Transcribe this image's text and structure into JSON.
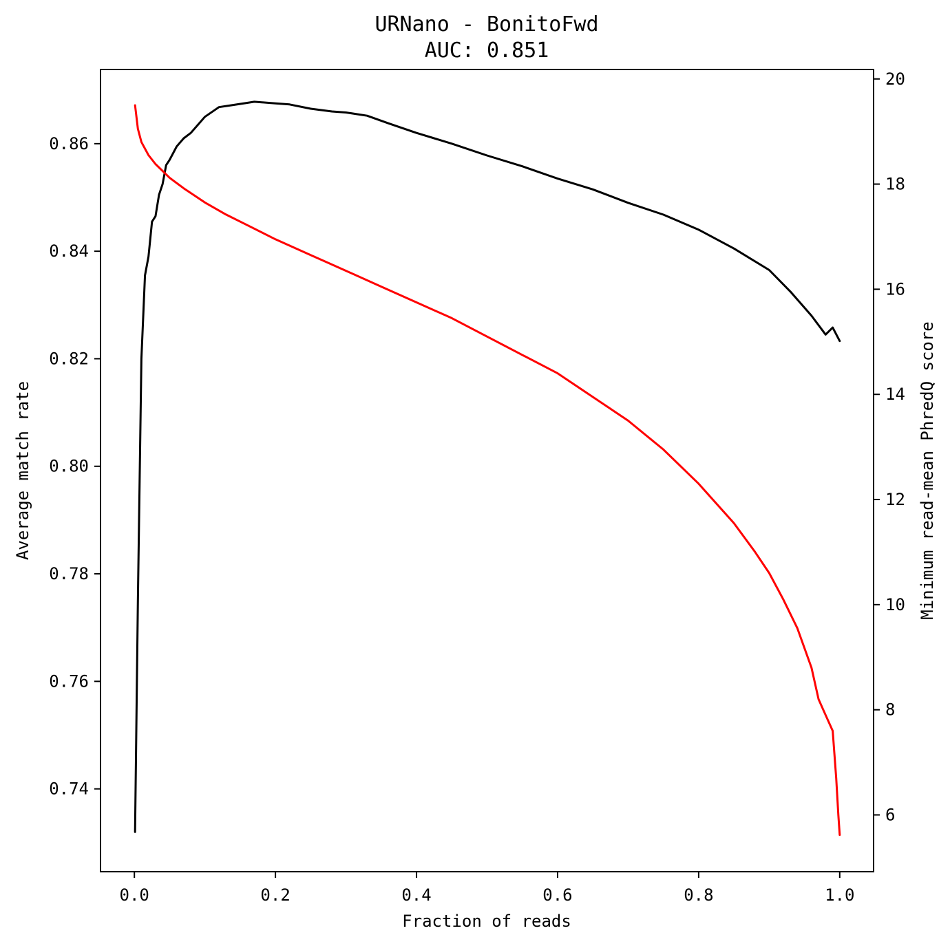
{
  "chart_data": {
    "type": "line",
    "title": "URNano - BonitoFwd",
    "subtitle": "AUC: 0.851",
    "xlabel": "Fraction of reads",
    "ylabel": "Average match rate",
    "y2label": "Minimum read-mean PhredQ score",
    "xlim": [
      -0.048,
      1.048
    ],
    "ylim": [
      0.7246,
      0.8738
    ],
    "y2lim": [
      4.92,
      20.18
    ],
    "xticks": [
      "0.0",
      "0.2",
      "0.4",
      "0.6",
      "0.8",
      "1.0"
    ],
    "yticks": [
      "0.74",
      "0.76",
      "0.78",
      "0.80",
      "0.82",
      "0.84",
      "0.86"
    ],
    "y2ticks": [
      "6",
      "8",
      "10",
      "12",
      "14",
      "16",
      "18",
      "20"
    ],
    "grid": false,
    "series": [
      {
        "axis": "left",
        "color": "#000000",
        "x": [
          0.001,
          0.005,
          0.01,
          0.015,
          0.02,
          0.025,
          0.03,
          0.035,
          0.04,
          0.045,
          0.05,
          0.06,
          0.07,
          0.08,
          0.09,
          0.1,
          0.12,
          0.14,
          0.16,
          0.17,
          0.2,
          0.22,
          0.25,
          0.28,
          0.3,
          0.33,
          0.36,
          0.4,
          0.45,
          0.5,
          0.55,
          0.6,
          0.65,
          0.7,
          0.75,
          0.8,
          0.85,
          0.9,
          0.93,
          0.96,
          0.98,
          0.99,
          1.0
        ],
        "y": [
          0.732,
          0.775,
          0.82,
          0.8355,
          0.839,
          0.8455,
          0.8465,
          0.8505,
          0.8525,
          0.856,
          0.857,
          0.8595,
          0.861,
          0.862,
          0.8635,
          0.865,
          0.8668,
          0.8672,
          0.8676,
          0.8678,
          0.8675,
          0.8673,
          0.8665,
          0.866,
          0.8658,
          0.8652,
          0.8638,
          0.862,
          0.86,
          0.8578,
          0.8558,
          0.8535,
          0.8515,
          0.849,
          0.8468,
          0.844,
          0.8405,
          0.8365,
          0.8325,
          0.828,
          0.8245,
          0.8258,
          0.8233
        ]
      },
      {
        "axis": "right",
        "color": "#ff0000",
        "x": [
          0.001,
          0.005,
          0.01,
          0.02,
          0.03,
          0.04,
          0.05,
          0.07,
          0.1,
          0.13,
          0.16,
          0.2,
          0.25,
          0.3,
          0.35,
          0.4,
          0.45,
          0.5,
          0.55,
          0.6,
          0.65,
          0.7,
          0.75,
          0.8,
          0.85,
          0.88,
          0.9,
          0.92,
          0.94,
          0.96,
          0.97,
          0.98,
          0.99,
          0.995,
          0.998,
          1.0
        ],
        "y": [
          19.5,
          19.05,
          18.8,
          18.55,
          18.38,
          18.25,
          18.12,
          17.92,
          17.65,
          17.42,
          17.22,
          16.95,
          16.65,
          16.35,
          16.05,
          15.75,
          15.45,
          15.1,
          14.75,
          14.4,
          13.95,
          13.5,
          12.95,
          12.3,
          11.55,
          11.0,
          10.6,
          10.1,
          9.55,
          8.8,
          8.2,
          7.9,
          7.6,
          6.7,
          6.0,
          5.62
        ]
      }
    ]
  }
}
